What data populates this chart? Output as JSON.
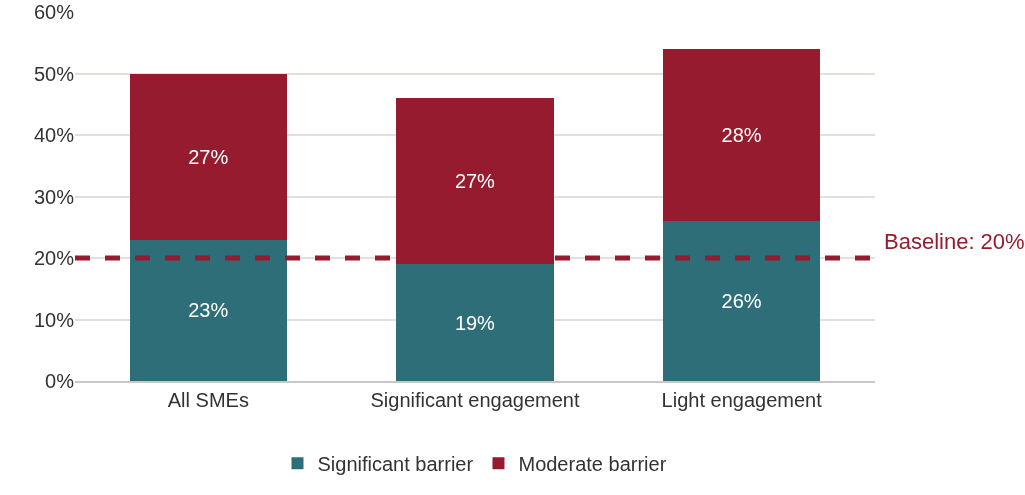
{
  "chart_data": {
    "type": "bar",
    "stacked": true,
    "categories": [
      "All SMEs",
      "Significant engagement",
      "Light engagement"
    ],
    "series": [
      {
        "name": "Significant barrier",
        "color": "#2e6e78",
        "values": [
          23,
          19,
          26
        ],
        "value_labels": [
          "23%",
          "19%",
          "26%"
        ]
      },
      {
        "name": "Moderate barrier",
        "color": "#961b2f",
        "values": [
          27,
          27,
          28
        ],
        "value_labels": [
          "27%",
          "27%",
          "28%"
        ]
      }
    ],
    "ylim": [
      0,
      60
    ],
    "yticks": [
      {
        "value": 0,
        "label": "0%"
      },
      {
        "value": 10,
        "label": "10%"
      },
      {
        "value": 20,
        "label": "20%"
      },
      {
        "value": 30,
        "label": "30%"
      },
      {
        "value": 40,
        "label": "40%"
      },
      {
        "value": 50,
        "label": "50%"
      },
      {
        "value": 60,
        "label": "60%"
      }
    ],
    "grid": "y",
    "legend": "bottom",
    "ref_lines": [
      {
        "axis": "y",
        "value": 20,
        "label": "Baseline: 20%",
        "color": "#961b2f",
        "line_style": "dashed"
      }
    ]
  }
}
